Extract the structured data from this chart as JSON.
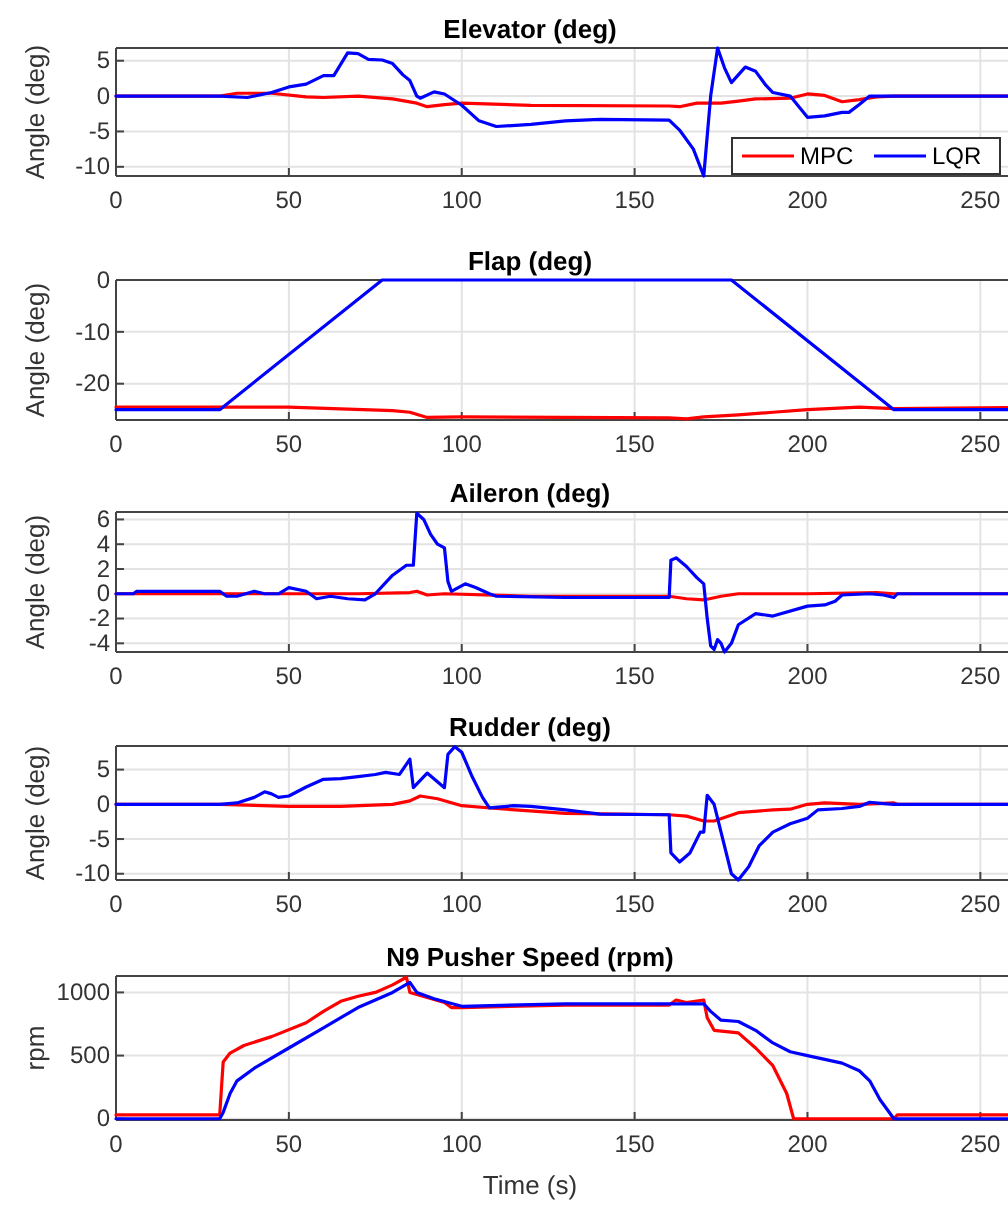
{
  "chart_data": [
    {
      "type": "line",
      "title": "Elevator (deg)",
      "ylabel": "Angle (deg)",
      "xlim": [
        0,
        258
      ],
      "xticks": [
        0,
        50,
        100,
        150,
        200,
        250
      ],
      "ylim": [
        -11.3,
        6.8
      ],
      "yticks": [
        -10,
        -5,
        0,
        5
      ],
      "grid": true,
      "legend": "bottom right",
      "series": [
        {
          "name": "MPC",
          "color": "#ff0000",
          "x": [
            0,
            30,
            35,
            45,
            55,
            60,
            70,
            80,
            87,
            90,
            95,
            100,
            120,
            160,
            163,
            168,
            175,
            180,
            185,
            195,
            200,
            205,
            210,
            215,
            220,
            225,
            258
          ],
          "values": [
            0,
            0,
            0.4,
            0.4,
            -0.1,
            -0.2,
            0,
            -0.4,
            -1.0,
            -1.5,
            -1.2,
            -1.0,
            -1.3,
            -1.4,
            -1.5,
            -1.0,
            -1.0,
            -0.7,
            -0.4,
            -0.3,
            0.3,
            0.1,
            -0.8,
            -0.5,
            -0.1,
            0,
            0
          ]
        },
        {
          "name": "LQR",
          "color": "#0000ff",
          "x": [
            0,
            30,
            38,
            45,
            50,
            55,
            60,
            63,
            67,
            70,
            73,
            77,
            80,
            83,
            85,
            87,
            88,
            92,
            95,
            100,
            105,
            110,
            120,
            130,
            140,
            160,
            163,
            167,
            170,
            172,
            174,
            176,
            178,
            182,
            185,
            188,
            190,
            195,
            200,
            205,
            210,
            212,
            215,
            218,
            230,
            258
          ],
          "values": [
            0,
            0,
            -0.2,
            0.5,
            1.3,
            1.7,
            2.9,
            2.9,
            6.1,
            6.0,
            5.2,
            5.1,
            4.6,
            3.0,
            2.2,
            0,
            -0.3,
            0.6,
            0.3,
            -1.3,
            -3.5,
            -4.3,
            -4.0,
            -3.5,
            -3.3,
            -3.4,
            -4.8,
            -7.5,
            -11.3,
            0,
            6.8,
            4,
            1.9,
            4.1,
            3.5,
            1.5,
            0.5,
            0,
            -3.0,
            -2.8,
            -2.3,
            -2.3,
            -1.2,
            0,
            0,
            0
          ]
        }
      ]
    },
    {
      "type": "line",
      "title": "Flap (deg)",
      "ylabel": "Angle (deg)",
      "xlim": [
        0,
        258
      ],
      "xticks": [
        0,
        50,
        100,
        150,
        200,
        250
      ],
      "ylim": [
        -27,
        0
      ],
      "yticks": [
        -20,
        -10,
        0
      ],
      "grid": true,
      "series": [
        {
          "color": "#ff0000",
          "x": [
            0,
            50,
            80,
            85,
            90,
            100,
            160,
            165,
            170,
            180,
            190,
            200,
            215,
            225,
            258
          ],
          "values": [
            -24.5,
            -24.5,
            -25.2,
            -25.5,
            -26.5,
            -26.4,
            -26.6,
            -26.8,
            -26.4,
            -26,
            -25.5,
            -25,
            -24.5,
            -24.8,
            -24.6
          ]
        },
        {
          "color": "#0000ff",
          "x": [
            0,
            30,
            77,
            178,
            225,
            258
          ],
          "values": [
            -25,
            -25,
            0,
            0,
            -25,
            -25
          ]
        }
      ]
    },
    {
      "type": "line",
      "title": "Aileron (deg)",
      "ylabel": "Angle (deg)",
      "xlim": [
        0,
        258
      ],
      "xticks": [
        0,
        50,
        100,
        150,
        200,
        250
      ],
      "ylim": [
        -4.7,
        6.6
      ],
      "yticks": [
        -4,
        -2,
        0,
        2,
        4,
        6
      ],
      "grid": true,
      "series": [
        {
          "color": "#ff0000",
          "x": [
            0,
            70,
            85,
            87,
            90,
            95,
            120,
            160,
            165,
            170,
            175,
            180,
            200,
            220,
            225,
            258
          ],
          "values": [
            0,
            0,
            0.1,
            0.2,
            -0.1,
            0,
            -0.2,
            -0.2,
            -0.4,
            -0.5,
            -0.2,
            0,
            0,
            0.1,
            0,
            0
          ]
        },
        {
          "color": "#0000ff",
          "x": [
            0,
            5,
            6,
            30,
            32,
            35,
            40,
            43,
            47,
            50,
            55,
            58,
            62,
            67,
            72,
            75,
            80,
            84,
            86,
            87,
            89,
            91,
            93,
            95,
            96,
            97,
            101,
            104,
            108,
            110,
            130,
            160,
            160.5,
            162,
            165,
            168,
            170,
            171,
            172,
            173,
            174,
            175,
            176,
            178,
            180,
            185,
            190,
            200,
            205,
            208,
            210,
            218,
            222,
            225,
            226,
            258
          ],
          "values": [
            0,
            0,
            0.2,
            0.2,
            -0.2,
            -0.2,
            0.2,
            0,
            0,
            0.5,
            0.2,
            -0.4,
            -0.2,
            -0.4,
            -0.5,
            0,
            1.5,
            2.3,
            2.3,
            6.5,
            6,
            4.8,
            4.0,
            3.7,
            1,
            0.2,
            0.8,
            0.5,
            0,
            -0.2,
            -0.3,
            -0.3,
            2.7,
            2.9,
            2.2,
            1.3,
            0.8,
            -2,
            -4.2,
            -4.5,
            -3.7,
            -4.0,
            -4.7,
            -4,
            -2.5,
            -1.6,
            -1.8,
            -1.0,
            -0.9,
            -0.6,
            -0.1,
            0,
            -0.1,
            -0.3,
            0,
            0
          ]
        }
      ]
    },
    {
      "type": "line",
      "title": "Rudder (deg)",
      "ylabel": "Angle (deg)",
      "xlim": [
        0,
        258
      ],
      "xticks": [
        0,
        50,
        100,
        150,
        200,
        250
      ],
      "ylim": [
        -10.9,
        8.4
      ],
      "yticks": [
        -10,
        -5,
        0,
        5
      ],
      "grid": true,
      "series": [
        {
          "color": "#ff0000",
          "x": [
            0,
            30,
            50,
            65,
            80,
            85,
            88,
            93,
            100,
            110,
            130,
            160,
            165,
            170,
            173,
            180,
            190,
            195,
            200,
            205,
            215,
            225,
            226,
            258
          ],
          "values": [
            0,
            0,
            -0.3,
            -0.3,
            0,
            0.5,
            1.2,
            0.8,
            -0.2,
            -0.6,
            -1.3,
            -1.5,
            -1.7,
            -2.4,
            -2.4,
            -1.2,
            -0.8,
            -0.7,
            0,
            0.2,
            0,
            0.2,
            0,
            0
          ]
        },
        {
          "color": "#0000ff",
          "x": [
            0,
            30,
            35,
            40,
            43,
            45,
            47,
            50,
            55,
            60,
            65,
            70,
            75,
            78,
            82,
            85,
            86,
            90,
            95,
            96,
            98,
            100,
            103,
            106,
            108,
            115,
            120,
            130,
            140,
            160,
            160.5,
            163,
            166,
            169,
            170,
            171,
            173,
            175,
            178,
            180,
            183,
            186,
            190,
            195,
            200,
            203,
            210,
            215,
            218,
            222,
            225,
            258
          ],
          "values": [
            0,
            0,
            0.2,
            1,
            1.8,
            1.5,
            1.0,
            1.2,
            2.5,
            3.6,
            3.7,
            4.0,
            4.3,
            4.6,
            4.3,
            6.5,
            2.4,
            4.5,
            2.4,
            7.2,
            8.3,
            7.5,
            4,
            1,
            -0.5,
            -0.2,
            -0.3,
            -0.8,
            -1.4,
            -1.5,
            -7,
            -8.3,
            -7,
            -4,
            -4,
            1.3,
            0,
            -4,
            -10,
            -10.9,
            -9,
            -6,
            -4,
            -2.8,
            -2,
            -0.8,
            -0.6,
            -0.3,
            0.3,
            0.1,
            0,
            0
          ]
        }
      ]
    },
    {
      "type": "line",
      "title": "N9 Pusher Speed (rpm)",
      "xlabel": "Time (s)",
      "ylabel": "rpm",
      "xlim": [
        0,
        258
      ],
      "xticks": [
        0,
        50,
        100,
        150,
        200,
        250
      ],
      "ylim": [
        -10,
        1130
      ],
      "yticks": [
        0,
        500,
        1000
      ],
      "grid": true,
      "series": [
        {
          "color": "#ff0000",
          "x": [
            0,
            30,
            31,
            33,
            37,
            45,
            55,
            60,
            65,
            70,
            75,
            80,
            84,
            85,
            90,
            95,
            97,
            100,
            130,
            160,
            162,
            165,
            170,
            171,
            173,
            180,
            185,
            190,
            194,
            196,
            225,
            226,
            258
          ],
          "values": [
            30,
            30,
            450,
            520,
            580,
            650,
            760,
            850,
            930,
            970,
            1000,
            1060,
            1120,
            1000,
            960,
            920,
            880,
            880,
            900,
            900,
            940,
            920,
            940,
            800,
            700,
            680,
            560,
            420,
            200,
            0,
            0,
            30,
            30
          ]
        },
        {
          "color": "#0000ff",
          "x": [
            0,
            30,
            31,
            33,
            35,
            40,
            50,
            60,
            70,
            80,
            85,
            87,
            92,
            100,
            130,
            160,
            170,
            172,
            175,
            180,
            185,
            190,
            195,
            200,
            210,
            215,
            218,
            221,
            225,
            258
          ],
          "values": [
            0,
            0,
            50,
            200,
            300,
            400,
            560,
            720,
            880,
            1000,
            1080,
            1000,
            950,
            890,
            910,
            910,
            910,
            850,
            780,
            770,
            700,
            600,
            530,
            500,
            440,
            380,
            300,
            150,
            0,
            0
          ]
        }
      ]
    }
  ]
}
